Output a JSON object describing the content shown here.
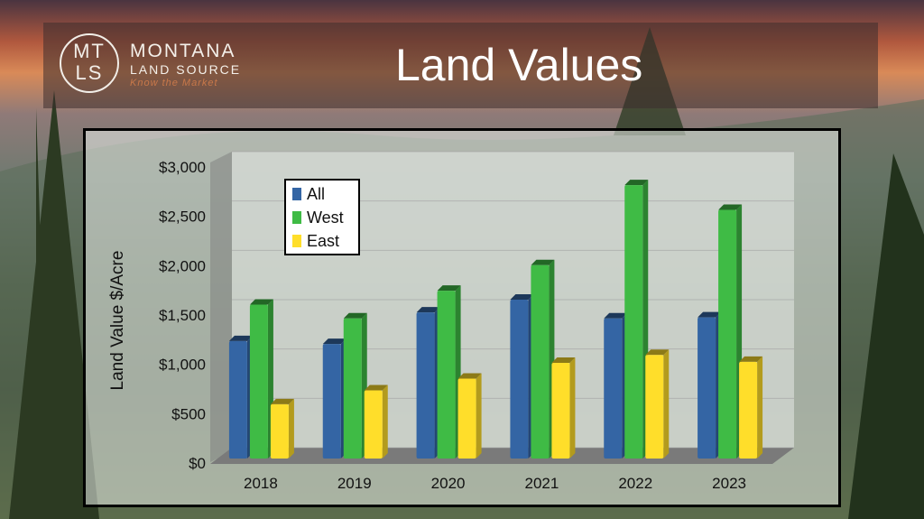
{
  "header": {
    "logo_mark": "MT LS",
    "brand_line1": "MONTANA",
    "brand_line2": "LAND SOURCE",
    "tagline": "Know the Market",
    "title": "Land Values"
  },
  "chart_data": {
    "type": "bar",
    "title": "Land Values",
    "xlabel": "",
    "ylabel": "Land Value $/Acre",
    "ylim": [
      0,
      3000
    ],
    "yticks": [
      0,
      500,
      1000,
      1500,
      2000,
      2500,
      3000
    ],
    "ytick_labels": [
      "$0",
      "$500",
      "$1,000",
      "$1,500",
      "$2,000",
      "$2,500",
      "$3,000"
    ],
    "categories": [
      "2018",
      "2019",
      "2020",
      "2021",
      "2022",
      "2023"
    ],
    "series": [
      {
        "name": "All",
        "color": "#3465a4",
        "values": [
          1190,
          1160,
          1480,
          1610,
          1420,
          1430
        ]
      },
      {
        "name": "West",
        "color": "#3fbb45",
        "values": [
          1560,
          1420,
          1700,
          1960,
          2770,
          2520
        ]
      },
      {
        "name": "East",
        "color": "#ffde2a",
        "values": [
          550,
          690,
          810,
          970,
          1050,
          980
        ]
      }
    ],
    "legend_position": "top-left",
    "grid": true
  }
}
